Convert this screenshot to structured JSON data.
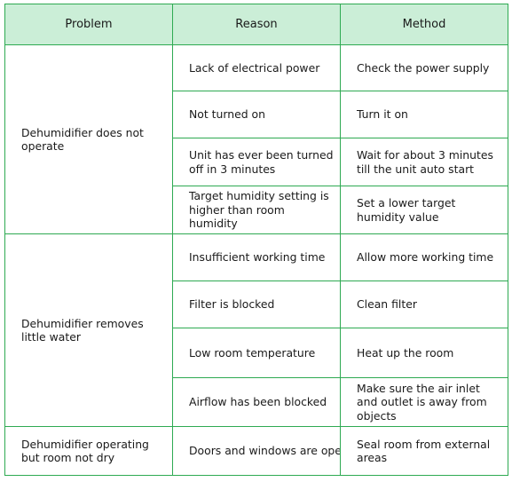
{
  "header": {
    "problem": "Problem",
    "reason": "Reason",
    "method": "Method"
  },
  "groups": [
    {
      "problem": "Dehumidifier does not operate",
      "rows": [
        {
          "reason": "Lack of electrical power",
          "method": "Check the power supply"
        },
        {
          "reason": "Not turned on",
          "method": "Turn it on"
        },
        {
          "reason": "Unit has ever been turned off in 3 minutes",
          "method": "Wait for about 3 minutes till the unit auto start"
        },
        {
          "reason": "Target humidity setting is higher than room humidity",
          "method": "Set a lower target humidity value"
        }
      ]
    },
    {
      "problem": "Dehumidifier removes little water",
      "rows": [
        {
          "reason": "Insufficient working time",
          "method": "Allow more working time"
        },
        {
          "reason": "Filter is blocked",
          "method": "Clean filter"
        },
        {
          "reason": "Low room temperature",
          "method": "Heat up the room"
        },
        {
          "reason": "Airflow has been blocked",
          "method": "Make sure the air inlet and outlet is away from objects"
        }
      ]
    },
    {
      "problem": "Dehumidifier operating but room not dry",
      "rows": [
        {
          "reason": "Doors and windows are open",
          "method": "Seal room from external areas"
        }
      ]
    }
  ],
  "colors": {
    "border": "#2eaa52",
    "header_bg": "#cbeed7",
    "text": "#1a1a1a"
  }
}
